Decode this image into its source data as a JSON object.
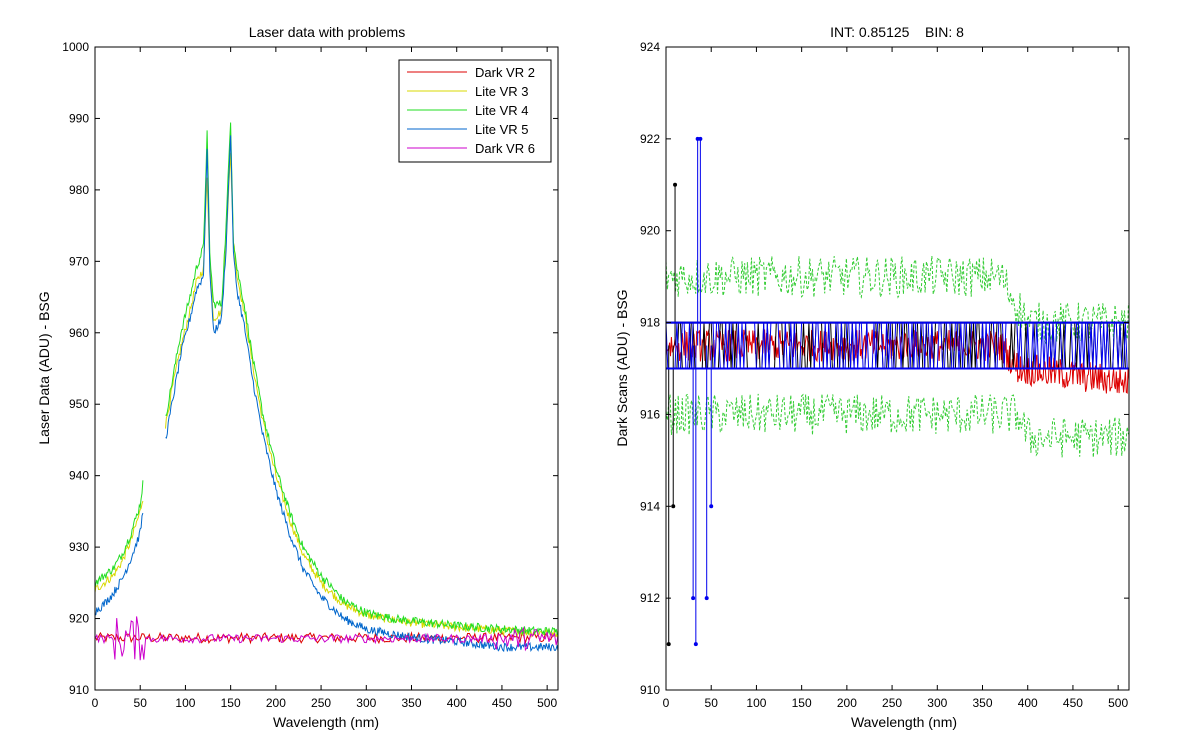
{
  "chart_data": [
    {
      "type": "line",
      "title": "Laser data with problems",
      "xlabel": "Wavelength (nm)",
      "ylabel": "Laser Data (ADU) - BSG",
      "xlim": [
        0,
        512
      ],
      "ylim": [
        910,
        1000
      ],
      "xticks": [
        0,
        50,
        100,
        150,
        200,
        250,
        300,
        350,
        400,
        450,
        500
      ],
      "yticks": [
        910,
        920,
        930,
        940,
        950,
        960,
        970,
        980,
        990,
        1000
      ],
      "grid": false,
      "legend_position": "top-right",
      "series": [
        {
          "name": "Dark VR 2",
          "color": "#dd0000",
          "kind": "flat",
          "base": 917.3,
          "amplitude": 0.7,
          "step": 2,
          "x": [
            0,
            512
          ],
          "values": [
            917.3,
            917.3
          ]
        },
        {
          "name": "Lite VR 3",
          "color": "#d8d800",
          "kind": "peak",
          "x": [
            0,
            10,
            20,
            30,
            40,
            50,
            53,
            null,
            78,
            85,
            95,
            105,
            112,
            120,
            124,
            127,
            131,
            140,
            145,
            150,
            153,
            157,
            165,
            175,
            185,
            200,
            215,
            230,
            250,
            275,
            300,
            330,
            360,
            400,
            430,
            455,
            480,
            512
          ],
          "values": [
            924,
            925,
            926,
            928,
            931,
            935,
            937,
            null,
            947,
            952,
            958,
            963,
            967,
            969,
            982,
            970,
            962,
            963,
            973,
            985,
            973,
            968,
            963,
            955,
            948,
            940,
            934,
            929,
            925,
            922,
            920.5,
            919.8,
            919.3,
            918.8,
            918.5,
            918.3,
            918.1,
            918
          ],
          "noise": 0.6
        },
        {
          "name": "Lite VR 4",
          "color": "#22dd22",
          "kind": "peak",
          "x": [
            0,
            10,
            20,
            30,
            40,
            50,
            53,
            null,
            78,
            85,
            95,
            105,
            112,
            120,
            124,
            127,
            131,
            140,
            145,
            150,
            153,
            157,
            165,
            175,
            185,
            200,
            215,
            230,
            250,
            275,
            300,
            330,
            360,
            400,
            430,
            455,
            480,
            512
          ],
          "values": [
            925,
            926,
            927,
            929,
            932,
            936,
            939,
            null,
            948,
            953,
            960,
            965,
            969,
            972,
            988,
            971,
            964,
            964,
            975,
            990,
            973,
            969,
            964,
            956,
            949,
            941,
            935,
            930,
            926,
            922.5,
            920.8,
            920,
            919.5,
            919,
            918.7,
            918.5,
            918.3,
            918.2
          ],
          "noise": 0.6
        },
        {
          "name": "Lite VR 5",
          "color": "#0066cc",
          "kind": "peak",
          "x": [
            0,
            10,
            20,
            30,
            40,
            50,
            53,
            null,
            78,
            85,
            95,
            105,
            112,
            120,
            124,
            127,
            131,
            140,
            145,
            150,
            153,
            157,
            165,
            175,
            185,
            200,
            215,
            230,
            250,
            275,
            300,
            330,
            360,
            400,
            430,
            455,
            480,
            512
          ],
          "values": [
            921,
            922,
            923.5,
            925.5,
            928.5,
            932,
            935,
            null,
            945,
            950,
            957,
            962,
            966,
            968,
            986,
            969,
            960,
            962,
            972,
            988,
            971,
            966,
            961,
            953,
            946,
            938,
            932,
            927,
            923,
            920,
            918.5,
            917.8,
            917.2,
            916.8,
            916.3,
            916,
            916,
            916
          ],
          "noise": 0.6
        },
        {
          "name": "Dark VR 6",
          "color": "#cc00cc",
          "kind": "flat",
          "base": 917.2,
          "amplitude": 0.6,
          "step": 2,
          "x": [
            0,
            512
          ],
          "values": [
            917.2,
            917.2
          ]
        }
      ]
    },
    {
      "type": "line",
      "title": "INT: 0.85125    BIN: 8",
      "xlabel": "Wavelength (nm)",
      "ylabel": "Dark Scans (ADU) - BSG",
      "xlim": [
        0,
        512
      ],
      "ylim": [
        910,
        924
      ],
      "xticks": [
        0,
        50,
        100,
        150,
        200,
        250,
        300,
        350,
        400,
        450,
        500
      ],
      "yticks": [
        910,
        912,
        914,
        916,
        918,
        920,
        922,
        924
      ],
      "grid": false,
      "series": [
        {
          "color": "#33cc33",
          "kind": "band",
          "style": "dashed",
          "upper": [
            [
              0,
              919
            ],
            [
              370,
              919
            ],
            [
              400,
              918
            ],
            [
              512,
              918
            ]
          ],
          "lower": [
            [
              0,
              916
            ],
            [
              390,
              916
            ],
            [
              400,
              915.5
            ],
            [
              512,
              915.5
            ]
          ]
        },
        {
          "color": "#dd0000",
          "kind": "noise",
          "segments": [
            [
              0,
              917.5
            ],
            [
              370,
              917.5
            ],
            [
              390,
              917
            ],
            [
              512,
              916.7
            ]
          ],
          "amplitude": 0.35
        },
        {
          "color": "#000000",
          "kind": "toggle",
          "levels": [
            917,
            918
          ],
          "spikes": [
            [
              10,
              921
            ],
            [
              8,
              914
            ],
            [
              3,
              911
            ]
          ]
        },
        {
          "color": "#0000ee",
          "kind": "toggle",
          "levels": [
            917,
            918
          ],
          "spikes": [
            [
              35,
              922
            ],
            [
              38,
              922
            ],
            [
              30,
              912
            ],
            [
              33,
              911
            ],
            [
              45,
              912
            ],
            [
              50,
              914
            ]
          ]
        }
      ]
    }
  ]
}
